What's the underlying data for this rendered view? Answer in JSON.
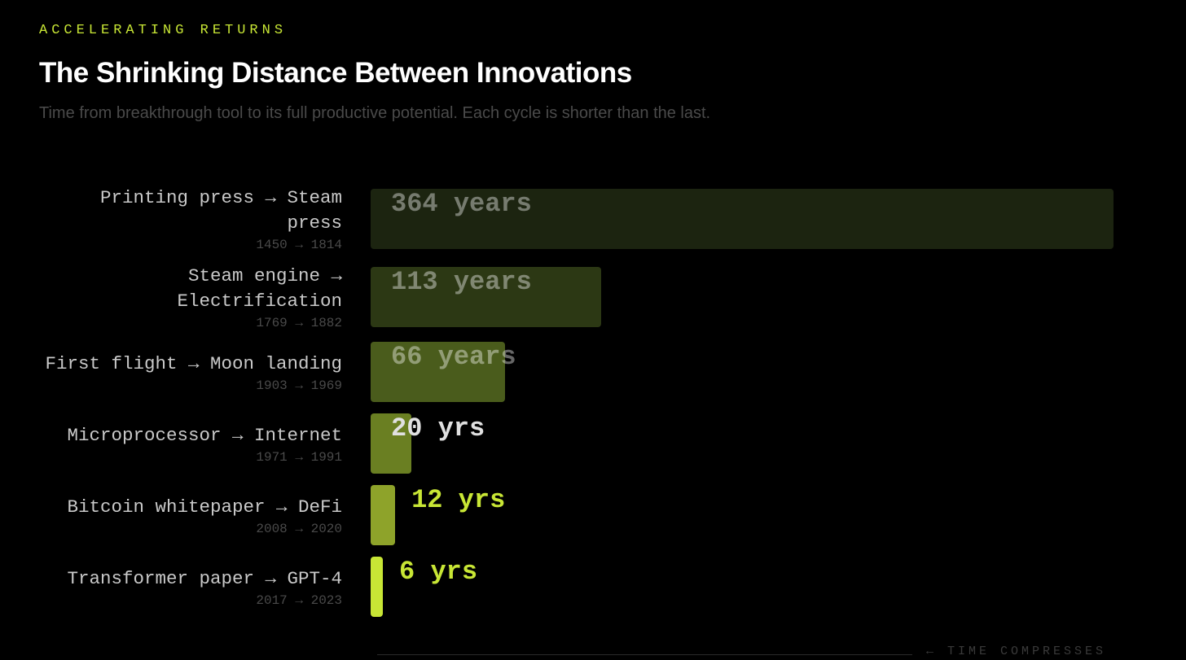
{
  "chart_data": {
    "type": "bar",
    "orientation": "horizontal",
    "eyebrow": "ACCELERATING RETURNS",
    "title": "The Shrinking Distance Between Innovations",
    "subtitle": "Time from breakthrough tool to its full productive potential. Each cycle is shorter than the last.",
    "categories": [
      "Printing press → Steam press",
      "Steam engine → Electrification",
      "First flight → Moon landing",
      "Microprocessor → Internet",
      "Bitcoin whitepaper → DeFi",
      "Transformer paper → GPT-4"
    ],
    "periods": [
      "1450 → 1814",
      "1769 → 1882",
      "1903 → 1969",
      "1971 → 1991",
      "2008 → 2020",
      "2017 → 2023"
    ],
    "values": [
      364,
      113,
      66,
      20,
      12,
      6
    ],
    "value_labels": [
      "364 years",
      "113 years",
      "66 years",
      "20 yrs",
      "12 yrs",
      "6 yrs"
    ],
    "colors": [
      "#1c2410",
      "#2c3814",
      "#4a5c1c",
      "#6a7f22",
      "#8ea32a",
      "#c8e635"
    ],
    "xlim": [
      0,
      364
    ],
    "footer": "← TIME COMPRESSES"
  }
}
